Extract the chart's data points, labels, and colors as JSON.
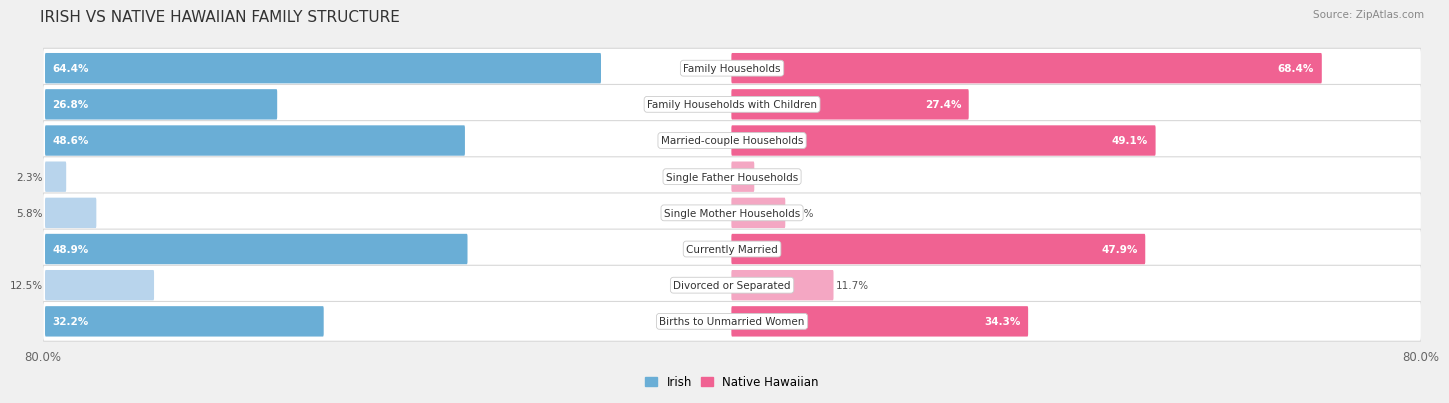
{
  "title": "IRISH VS NATIVE HAWAIIAN FAMILY STRUCTURE",
  "source": "Source: ZipAtlas.com",
  "categories": [
    "Family Households",
    "Family Households with Children",
    "Married-couple Households",
    "Single Father Households",
    "Single Mother Households",
    "Currently Married",
    "Divorced or Separated",
    "Births to Unmarried Women"
  ],
  "irish_values": [
    64.4,
    26.8,
    48.6,
    2.3,
    5.8,
    48.9,
    12.5,
    32.2
  ],
  "hawaiian_values": [
    68.4,
    27.4,
    49.1,
    2.5,
    6.1,
    47.9,
    11.7,
    34.3
  ],
  "irish_color": "#6aaed6",
  "hawaiian_color": "#f06292",
  "irish_light_color": "#b8d4ec",
  "hawaiian_light_color": "#f4a7c3",
  "axis_max": 80.0,
  "bg_color": "#f0f0f0",
  "row_bg": "#f7f7f7",
  "row_border": "#d8d8d8",
  "label_fontsize": 7.5,
  "value_fontsize": 7.5,
  "title_fontsize": 11,
  "legend_fontsize": 8.5,
  "large_threshold": 15
}
